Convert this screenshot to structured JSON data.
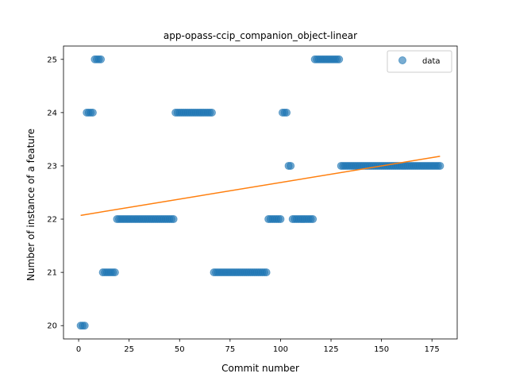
{
  "chart_data": {
    "type": "scatter",
    "title": "app-opass-ccip_companion_object-linear",
    "xlabel": "Commit number",
    "ylabel": "Number of instance of a feature",
    "xlim": [
      -7.5,
      187.5
    ],
    "ylim": [
      19.75,
      25.25
    ],
    "xticks": [
      0,
      25,
      50,
      75,
      100,
      125,
      150,
      175
    ],
    "yticks": [
      20,
      21,
      22,
      23,
      24,
      25
    ],
    "legend": {
      "position": "top-right",
      "entries": [
        "data"
      ]
    },
    "colors": {
      "data": "#1f77b4",
      "fit": "#ff7f0e"
    },
    "segments": [
      {
        "x_start": 1,
        "x_end": 3,
        "y": 20
      },
      {
        "x_start": 4,
        "x_end": 7,
        "y": 24
      },
      {
        "x_start": 8,
        "x_end": 11,
        "y": 25
      },
      {
        "x_start": 12,
        "x_end": 18,
        "y": 21
      },
      {
        "x_start": 19,
        "x_end": 47,
        "y": 22
      },
      {
        "x_start": 48,
        "x_end": 66,
        "y": 24
      },
      {
        "x_start": 67,
        "x_end": 93,
        "y": 21
      },
      {
        "x_start": 94,
        "x_end": 100,
        "y": 22
      },
      {
        "x_start": 101,
        "x_end": 103,
        "y": 24
      },
      {
        "x_start": 104,
        "x_end": 105,
        "y": 23
      },
      {
        "x_start": 106,
        "x_end": 116,
        "y": 22
      },
      {
        "x_start": 117,
        "x_end": 129,
        "y": 25
      },
      {
        "x_start": 130,
        "x_end": 179,
        "y": 23
      }
    ],
    "fit_line": {
      "x": [
        1,
        179
      ],
      "y": [
        22.07,
        23.18
      ]
    }
  }
}
